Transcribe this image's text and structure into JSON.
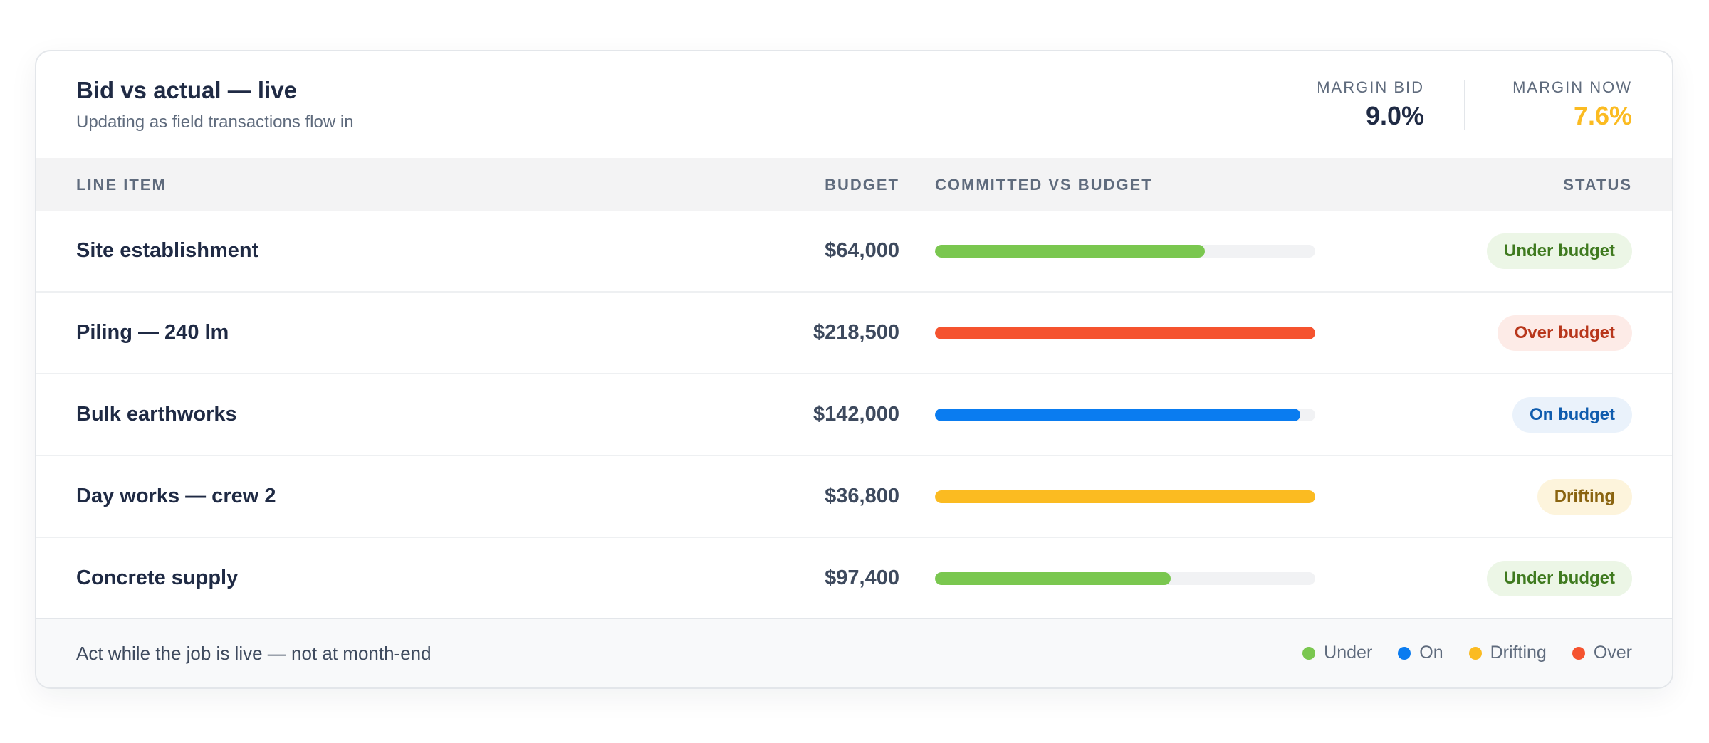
{
  "header": {
    "title": "Bid vs actual — live",
    "subtitle": "Updating as field transactions flow in",
    "margin_bid": {
      "label": "MARGIN BID",
      "value": "9.0%",
      "color": "#1f2a44"
    },
    "margin_now": {
      "label": "MARGIN NOW",
      "value": "7.6%",
      "color": "#fbbb21"
    }
  },
  "table": {
    "columns": {
      "item": "LINE ITEM",
      "budget": "BUDGET",
      "bar": "COMMITTED VS BUDGET",
      "status": "STATUS"
    },
    "rows": [
      {
        "item": "Site establishment",
        "budget": "$64,000",
        "committed_fraction": 0.71,
        "status": "Under budget",
        "status_key": "under"
      },
      {
        "item": "Piling — 240 lm",
        "budget": "$218,500",
        "committed_fraction": 1.0,
        "status": "Over budget",
        "status_key": "over"
      },
      {
        "item": "Bulk earthworks",
        "budget": "$142,000",
        "committed_fraction": 0.96,
        "status": "On budget",
        "status_key": "on"
      },
      {
        "item": "Day works — crew 2",
        "budget": "$36,800",
        "committed_fraction": 1.0,
        "status": "Drifting",
        "status_key": "drifting"
      },
      {
        "item": "Concrete supply",
        "budget": "$97,400",
        "committed_fraction": 0.62,
        "status": "Under budget",
        "status_key": "under"
      }
    ]
  },
  "status_styles": {
    "under": {
      "bar": "#7ac74f",
      "badge_bg": "#ecf6e6",
      "badge_fg": "#3f7a1f"
    },
    "over": {
      "bar": "#f5532f",
      "badge_bg": "#fdebe7",
      "badge_fg": "#b8361b"
    },
    "on": {
      "bar": "#0a7cf0",
      "badge_bg": "#eaf2fb",
      "badge_fg": "#0f5cae"
    },
    "drifting": {
      "bar": "#fbbb21",
      "badge_bg": "#fdf4dc",
      "badge_fg": "#8a6410"
    }
  },
  "footer": {
    "note": "Act while the job is live — not at month-end",
    "legend": [
      {
        "label": "Under",
        "color": "#7ac74f"
      },
      {
        "label": "On",
        "color": "#0a7cf0"
      },
      {
        "label": "Drifting",
        "color": "#fbbb21"
      },
      {
        "label": "Over",
        "color": "#f5532f"
      }
    ]
  }
}
